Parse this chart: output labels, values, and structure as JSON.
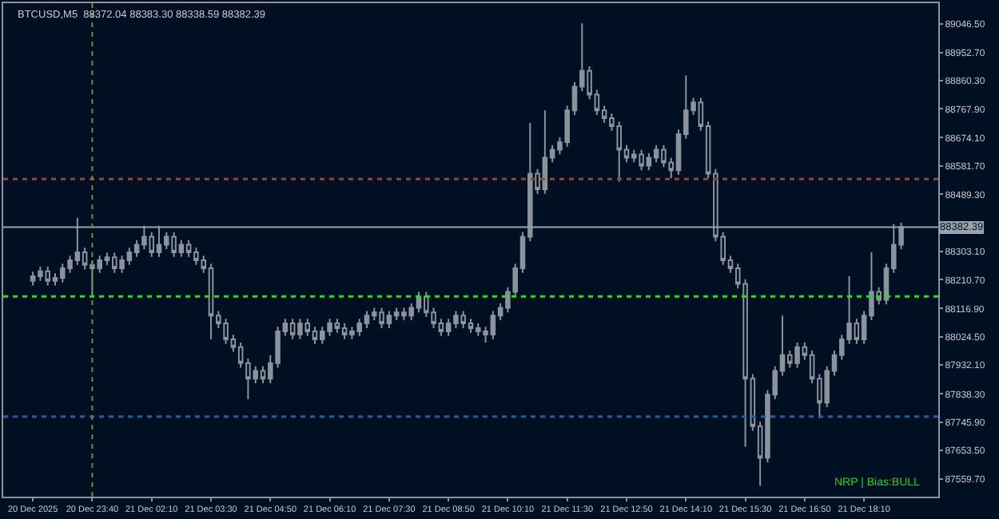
{
  "chart_data": {
    "type": "candlestick",
    "title": "BTCUSD,M5",
    "subtitle": "88372.04 88383.30 88338.59 88382.39",
    "categories": [
      "20 Dec 2025",
      null,
      null,
      null,
      null,
      null,
      null,
      null,
      "20 Dec 23:40",
      null,
      null,
      null,
      null,
      null,
      null,
      null,
      "21 Dec 02:10",
      null,
      null,
      null,
      null,
      null,
      null,
      null,
      "21 Dec 03:30",
      null,
      null,
      null,
      null,
      null,
      null,
      null,
      "21 Dec 04:50",
      null,
      null,
      null,
      null,
      null,
      null,
      null,
      "21 Dec 06:10",
      null,
      null,
      null,
      null,
      null,
      null,
      null,
      "21 Dec 07:30",
      null,
      null,
      null,
      null,
      null,
      null,
      null,
      "21 Dec 08:50",
      null,
      null,
      null,
      null,
      null,
      null,
      null,
      "21 Dec 10:10",
      null,
      null,
      null,
      null,
      null,
      null,
      null,
      "21 Dec 11:30",
      null,
      null,
      null,
      null,
      null,
      null,
      null,
      "21 Dec 12:50",
      null,
      null,
      null,
      null,
      null,
      null,
      null,
      "21 Dec 14:10",
      null,
      null,
      null,
      null,
      null,
      null,
      null,
      "21 Dec 15:30",
      null,
      null,
      null,
      null,
      null,
      null,
      null,
      "21 Dec 16:50",
      null,
      null,
      null,
      null,
      null,
      null,
      null,
      "21 Dec 18:10",
      null,
      null,
      null,
      null,
      null
    ],
    "ohlc": [
      [
        88207,
        88237,
        88192,
        88222
      ],
      [
        88222,
        88253,
        88207,
        88238
      ],
      [
        88238,
        88253,
        88192,
        88207
      ],
      [
        88207,
        88232,
        88192,
        88217
      ],
      [
        88217,
        88263,
        88202,
        88248
      ],
      [
        88248,
        88289,
        88233,
        88274
      ],
      [
        88274,
        88413,
        88259,
        88300
      ],
      [
        88300,
        88315,
        88244,
        88259
      ],
      [
        88259,
        88274,
        88161,
        88248
      ],
      [
        88248,
        88289,
        88233,
        88274
      ],
      [
        88274,
        88299,
        88259,
        88284
      ],
      [
        88284,
        88299,
        88233,
        88248
      ],
      [
        88248,
        88289,
        88233,
        88274
      ],
      [
        88274,
        88315,
        88259,
        88300
      ],
      [
        88300,
        88340,
        88285,
        88325
      ],
      [
        88325,
        88387,
        88310,
        88351
      ],
      [
        88351,
        88366,
        88285,
        88300
      ],
      [
        88300,
        88387,
        88285,
        88325
      ],
      [
        88325,
        88366,
        88310,
        88351
      ],
      [
        88351,
        88366,
        88285,
        88300
      ],
      [
        88300,
        88340,
        88285,
        88325
      ],
      [
        88325,
        88340,
        88285,
        88300
      ],
      [
        88300,
        88315,
        88259,
        88274
      ],
      [
        88274,
        88289,
        88233,
        88248
      ],
      [
        88248,
        88263,
        88016,
        88094
      ],
      [
        88094,
        88109,
        88053,
        88068
      ],
      [
        88068,
        88083,
        88001,
        88016
      ],
      [
        88016,
        88031,
        87976,
        87991
      ],
      [
        87991,
        88006,
        87924,
        87939
      ],
      [
        87939,
        87954,
        87821,
        87888
      ],
      [
        87888,
        87928,
        87873,
        87913
      ],
      [
        87913,
        87928,
        87873,
        87888
      ],
      [
        87888,
        87965,
        87873,
        87939
      ],
      [
        87939,
        88057,
        87924,
        88042
      ],
      [
        88042,
        88083,
        88027,
        88068
      ],
      [
        88068,
        88083,
        88017,
        88032
      ],
      [
        88032,
        88083,
        88017,
        88068
      ],
      [
        88068,
        88083,
        88027,
        88042
      ],
      [
        88042,
        88057,
        88001,
        88016
      ],
      [
        88016,
        88057,
        88001,
        88042
      ],
      [
        88042,
        88083,
        88027,
        88068
      ],
      [
        88068,
        88083,
        88038,
        88053
      ],
      [
        88053,
        88068,
        88017,
        88032
      ],
      [
        88032,
        88057,
        88017,
        88042
      ],
      [
        88042,
        88083,
        88027,
        88068
      ],
      [
        88068,
        88109,
        88053,
        88094
      ],
      [
        88094,
        88119,
        88079,
        88104
      ],
      [
        88104,
        88119,
        88053,
        88068
      ],
      [
        88068,
        88109,
        88053,
        88094
      ],
      [
        88094,
        88119,
        88079,
        88104
      ],
      [
        88104,
        88119,
        88079,
        88094
      ],
      [
        88094,
        88134,
        88079,
        88119
      ],
      [
        88119,
        88171,
        88104,
        88156
      ],
      [
        88156,
        88171,
        88089,
        88104
      ],
      [
        88104,
        88119,
        88053,
        88068
      ],
      [
        88068,
        88083,
        88027,
        88042
      ],
      [
        88042,
        88083,
        88027,
        88068
      ],
      [
        88068,
        88109,
        88053,
        88094
      ],
      [
        88094,
        88109,
        88053,
        88068
      ],
      [
        88068,
        88083,
        88038,
        88053
      ],
      [
        88053,
        88068,
        88027,
        88042
      ],
      [
        88042,
        88057,
        88006,
        88032
      ],
      [
        88032,
        88109,
        88017,
        88094
      ],
      [
        88094,
        88134,
        88079,
        88119
      ],
      [
        88119,
        88186,
        88104,
        88171
      ],
      [
        88171,
        88263,
        88156,
        88248
      ],
      [
        88248,
        88366,
        88233,
        88351
      ],
      [
        88351,
        88722,
        88336,
        88557
      ],
      [
        88557,
        88572,
        88491,
        88506
      ],
      [
        88506,
        88763,
        88491,
        88609
      ],
      [
        88609,
        88650,
        88594,
        88635
      ],
      [
        88635,
        88675,
        88620,
        88660
      ],
      [
        88660,
        88778,
        88645,
        88763
      ],
      [
        88763,
        88856,
        88748,
        88841
      ],
      [
        88841,
        89047,
        88826,
        88892
      ],
      [
        88892,
        88907,
        88800,
        88815
      ],
      [
        88815,
        88830,
        88748,
        88763
      ],
      [
        88763,
        88778,
        88723,
        88738
      ],
      [
        88738,
        88753,
        88697,
        88712
      ],
      [
        88712,
        88727,
        88531,
        88635
      ],
      [
        88635,
        88650,
        88594,
        88609
      ],
      [
        88609,
        88634,
        88594,
        88619
      ],
      [
        88619,
        88634,
        88568,
        88583
      ],
      [
        88583,
        88624,
        88568,
        88609
      ],
      [
        88609,
        88650,
        88594,
        88635
      ],
      [
        88635,
        88650,
        88578,
        88593
      ],
      [
        88593,
        88608,
        88542,
        88568
      ],
      [
        88568,
        88701,
        88553,
        88686
      ],
      [
        88686,
        88877,
        88671,
        88763
      ],
      [
        88763,
        88804,
        88748,
        88789
      ],
      [
        88789,
        88804,
        88697,
        88712
      ],
      [
        88712,
        88727,
        88542,
        88557
      ],
      [
        88557,
        88572,
        88336,
        88351
      ],
      [
        88351,
        88366,
        88259,
        88274
      ],
      [
        88274,
        88289,
        88233,
        88248
      ],
      [
        88248,
        88263,
        88182,
        88197
      ],
      [
        88197,
        88212,
        87666,
        87888
      ],
      [
        87888,
        87903,
        87718,
        87733
      ],
      [
        87733,
        87748,
        87538,
        87630
      ],
      [
        87630,
        87851,
        87615,
        87836
      ],
      [
        87836,
        87928,
        87821,
        87913
      ],
      [
        87913,
        88094,
        87898,
        87965
      ],
      [
        87965,
        87980,
        87924,
        87939
      ],
      [
        87939,
        88006,
        87924,
        87991
      ],
      [
        87991,
        88006,
        87950,
        87965
      ],
      [
        87965,
        87980,
        87873,
        87888
      ],
      [
        87888,
        87903,
        87759,
        87810
      ],
      [
        87810,
        87928,
        87795,
        87913
      ],
      [
        87913,
        87980,
        87898,
        87965
      ],
      [
        87965,
        88031,
        87950,
        88016
      ],
      [
        88016,
        88222,
        88001,
        88068
      ],
      [
        88068,
        88083,
        88001,
        88016
      ],
      [
        88016,
        88109,
        88001,
        88094
      ],
      [
        88094,
        88300,
        88079,
        88171
      ],
      [
        88171,
        88186,
        88130,
        88145
      ],
      [
        88145,
        88263,
        88130,
        88248
      ],
      [
        88248,
        88393,
        88233,
        88325
      ],
      [
        88325,
        88397,
        88310,
        88382
      ]
    ],
    "color": "#8a929c",
    "ylim": [
      87503,
      89113
    ],
    "yticks": [
      {
        "value": 87559.7,
        "label": "87559.70"
      },
      {
        "value": 87653.5,
        "label": "87653.50"
      },
      {
        "value": 87745.9,
        "label": "87745.90"
      },
      {
        "value": 87838.3,
        "label": "87838.30"
      },
      {
        "value": 87932.1,
        "label": "87932.10"
      },
      {
        "value": 88024.5,
        "label": "88024.50"
      },
      {
        "value": 88116.9,
        "label": "88116.90"
      },
      {
        "value": 88210.7,
        "label": "88210.70"
      },
      {
        "value": 88303.1,
        "label": "88303.10"
      },
      {
        "value": 88489.3,
        "label": "88489.30"
      },
      {
        "value": 88581.7,
        "label": "88581.70"
      },
      {
        "value": 88674.1,
        "label": "88674.10"
      },
      {
        "value": 88767.9,
        "label": "88767.90"
      },
      {
        "value": 88860.3,
        "label": "88860.30"
      },
      {
        "value": 88952.7,
        "label": "88952.70"
      },
      {
        "value": 89046.5,
        "label": "89046.50"
      }
    ],
    "ref_lines": [
      {
        "axis": "y",
        "value": 88156,
        "color": "#19e619",
        "line_style": "dotted"
      },
      {
        "axis": "y",
        "value": 88382.39,
        "label": "88382.39",
        "color": "#9aa3ad",
        "line_style": "solid"
      },
      {
        "axis": "y",
        "value": 88539,
        "color": "#8b4a3a",
        "line_style": "dotted"
      },
      {
        "axis": "y",
        "value": 87764,
        "color": "#1f5f9f",
        "line_style": "dotted"
      },
      {
        "axis": "x",
        "value": "20 Dec 23:40",
        "color": "#7a8a2a",
        "line_style": "dotted"
      }
    ],
    "annotations": [
      "NRP | Bias:BULL"
    ],
    "grid": false
  }
}
